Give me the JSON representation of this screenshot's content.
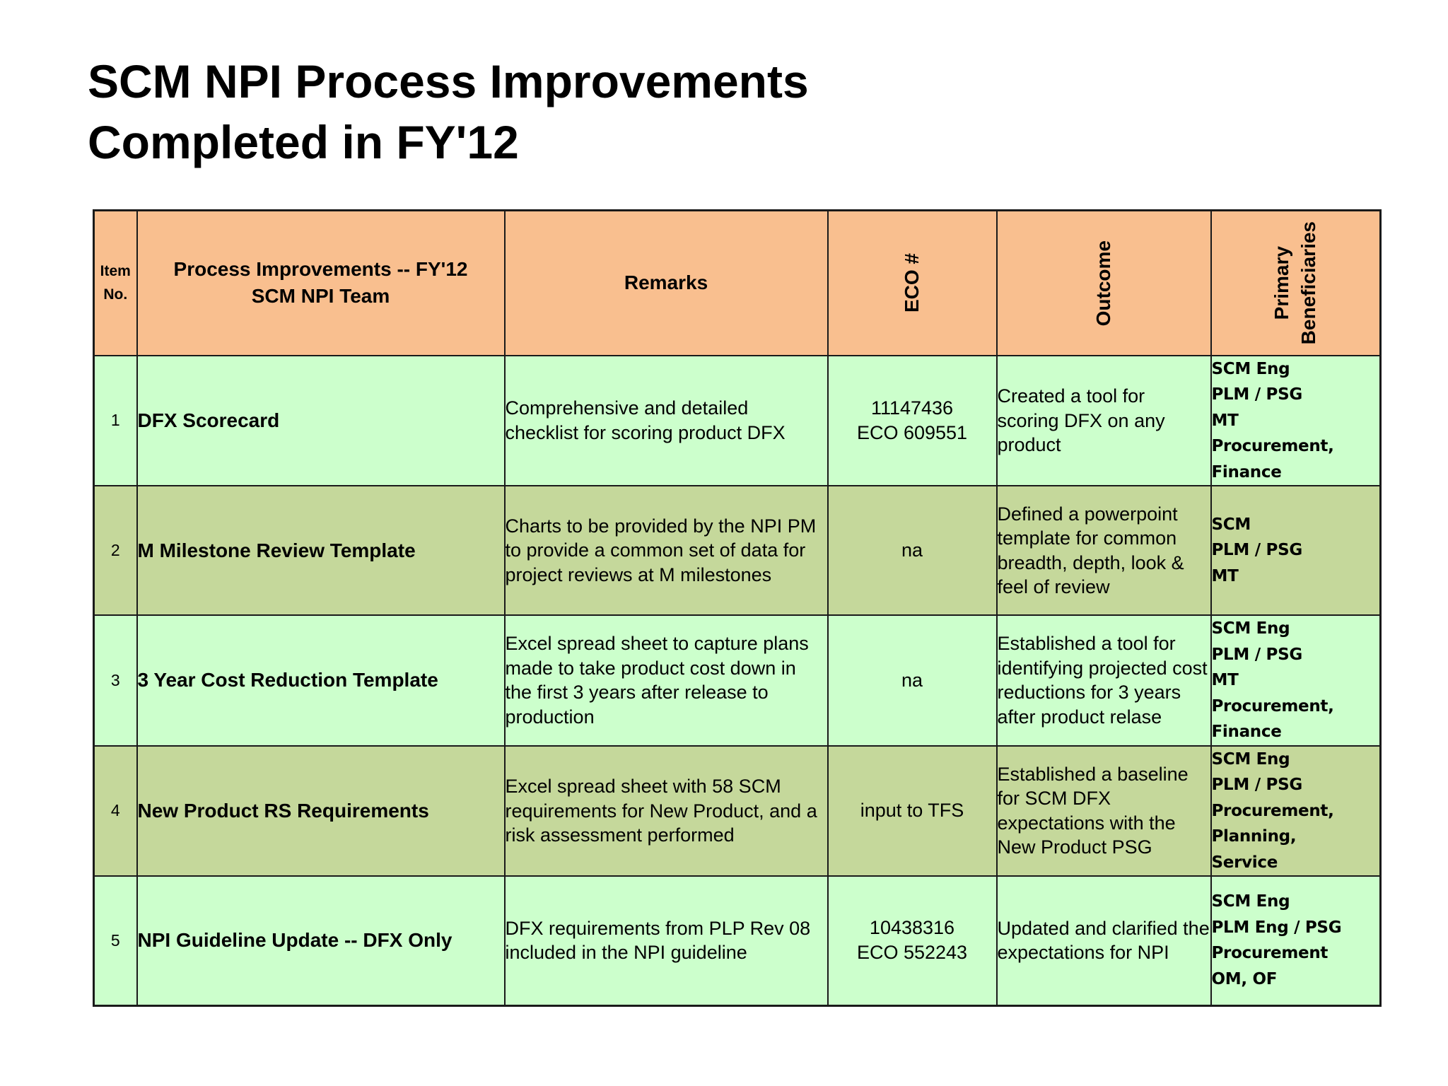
{
  "title": {
    "line1": "SCM NPI Process Improvements",
    "line2": "Completed in FY'12"
  },
  "table": {
    "headers": {
      "item": "Item No.",
      "process_line1": "Process Improvements -- FY'12",
      "process_line2": "SCM NPI Team",
      "remarks": "Remarks",
      "eco": "ECO #",
      "outcome": "Outcome",
      "beneficiaries_line1": "Primary",
      "beneficiaries_line2": "Beneficiaries"
    },
    "rows": [
      {
        "num": "1",
        "name": "DFX Scorecard",
        "remarks": [
          "Comprehensive and detailed",
          "checklist for scoring product DFX"
        ],
        "eco": [
          "11147436",
          "ECO 609551"
        ],
        "outcome": [
          "Created a tool for",
          "scoring DFX on any",
          "product"
        ],
        "beneficiaries": [
          "SCM Eng",
          "PLM / PSG",
          "MT",
          "Procurement,",
          "Finance"
        ]
      },
      {
        "num": "2",
        "name": "M Milestone Review Template",
        "remarks": [
          "Charts to be provided by the NPI PM",
          "to provide a common set of data for",
          "project reviews at M milestones"
        ],
        "eco": [
          "na"
        ],
        "outcome": [
          "Defined a powerpoint",
          "template for common",
          "breadth, depth, look &",
          "feel of review"
        ],
        "beneficiaries": [
          "SCM",
          "PLM / PSG",
          "MT"
        ]
      },
      {
        "num": "3",
        "name": "3 Year Cost Reduction Template",
        "remarks": [
          "Excel spread sheet to capture plans",
          "made to take product cost down in",
          "the first 3 years after release to",
          "production"
        ],
        "eco": [
          "na"
        ],
        "outcome": [
          "Established a tool for",
          "identifying projected cost",
          "reductions for 3 years",
          "after product relase"
        ],
        "beneficiaries": [
          "SCM Eng",
          "PLM / PSG",
          "MT",
          "Procurement,",
          "Finance"
        ]
      },
      {
        "num": "4",
        "name": "New Product RS Requirements",
        "remarks": [
          "Excel spread sheet with 58 SCM",
          "requirements for New Product, and a",
          "risk assessment performed"
        ],
        "eco": [
          "input to TFS"
        ],
        "outcome": [
          "Established a baseline",
          "for SCM DFX",
          "expectations with the",
          "New Product PSG"
        ],
        "beneficiaries": [
          "SCM Eng",
          "PLM / PSG",
          "Procurement,",
          "Planning,",
          "Service"
        ]
      },
      {
        "num": "5",
        "name": "NPI Guideline Update -- DFX Only",
        "remarks": [
          "DFX requirements from PLP Rev 08",
          "included in the NPI guideline"
        ],
        "eco": [
          "10438316",
          "ECO 552243"
        ],
        "outcome": [
          "Updated and clarified the",
          "expectations for NPI"
        ],
        "beneficiaries": [
          "SCM Eng",
          "PLM Eng / PSG",
          "Procurement",
          "OM, OF"
        ]
      }
    ]
  }
}
